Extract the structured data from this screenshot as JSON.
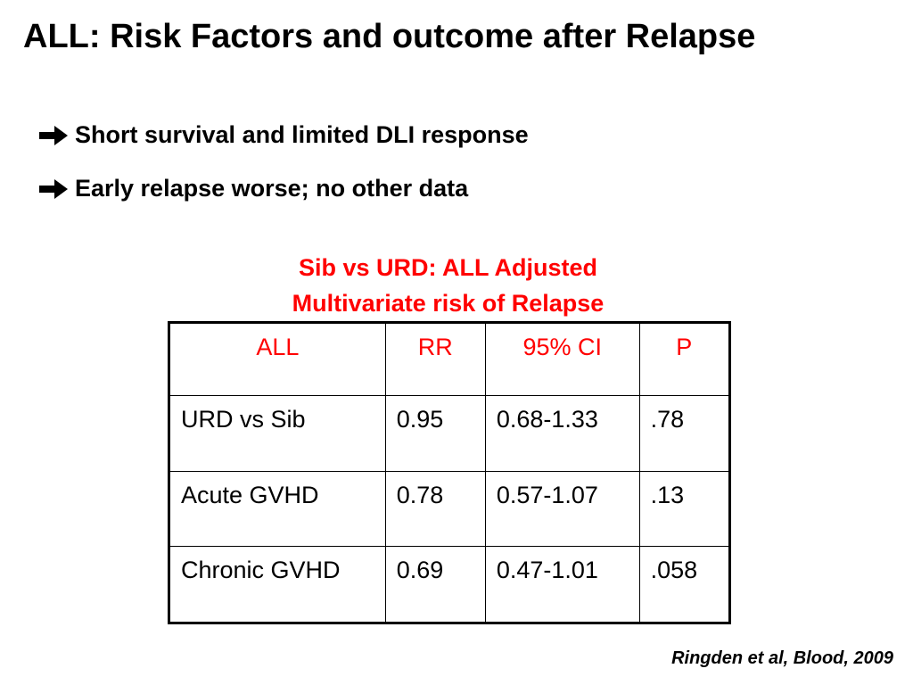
{
  "slide": {
    "title": "ALL: Risk Factors and outcome after Relapse",
    "bullets": [
      "Short survival and limited DLI response",
      "Early relapse worse; no other data"
    ],
    "bullet_icon": "right-arrow-icon",
    "table_title_line1": "Sib vs URD: ALL Adjusted",
    "table_title_line2": "Multivariate risk of Relapse",
    "citation": "Ringden et al, Blood, 2009"
  },
  "table": {
    "headers": [
      "ALL",
      "RR",
      "95% CI",
      "P"
    ],
    "rows": [
      [
        "URD vs Sib",
        "0.95",
        "0.68-1.33",
        ".78"
      ],
      [
        "Acute GVHD",
        "0.78",
        "0.57-1.07",
        ".13"
      ],
      [
        "Chronic GVHD",
        "0.69",
        "0.47-1.01",
        ".058"
      ]
    ]
  },
  "colors": {
    "accent_red": "#ff0000",
    "text": "#000000",
    "background": "#ffffff"
  }
}
